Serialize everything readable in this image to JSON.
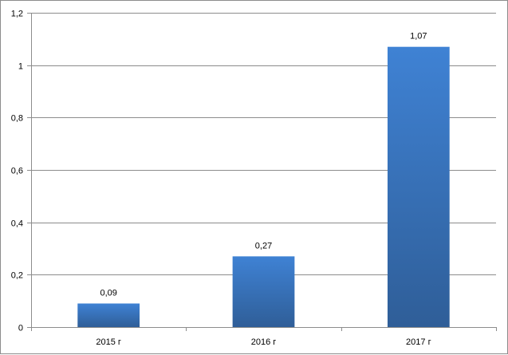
{
  "chart_data": {
    "type": "bar",
    "categories": [
      "2015 г",
      "2016 г",
      "2017 г"
    ],
    "values": [
      0.09,
      0.27,
      1.07
    ],
    "data_labels": [
      "0,09",
      "0,27",
      "1,07"
    ],
    "title": "",
    "xlabel": "",
    "ylabel": "",
    "ylim": [
      0,
      1.2
    ],
    "yticks": [
      0,
      0.2,
      0.4,
      0.6,
      0.8,
      1,
      1.2
    ],
    "ytick_labels": [
      "0",
      "0,2",
      "0,4",
      "0,6",
      "0,8",
      "1",
      "1,2"
    ],
    "grid": true,
    "legend": "none",
    "bar_color_top": "#3f82d4",
    "bar_color_bottom": "#2f5e98",
    "grid_color": "#8c8c8c"
  }
}
